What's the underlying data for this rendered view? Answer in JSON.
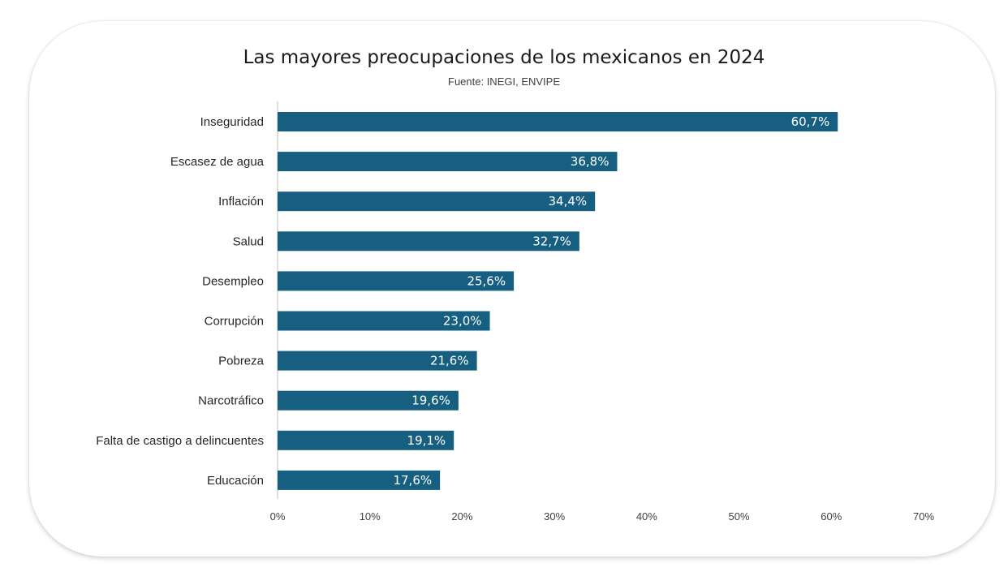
{
  "chart_data": {
    "type": "bar",
    "orientation": "horizontal",
    "title": "Las mayores preocupaciones de los mexicanos en 2024",
    "subtitle": "Fuente: INEGI, ENVIPE",
    "categories": [
      "Inseguridad",
      "Escasez de agua",
      "Inflación",
      "Salud",
      "Desempleo",
      "Corrupción",
      "Pobreza",
      "Narcotráfico",
      "Falta de castigo a delincuentes",
      "Educación"
    ],
    "values": [
      60.7,
      36.8,
      34.4,
      32.7,
      25.6,
      23.0,
      21.6,
      19.6,
      19.1,
      17.6
    ],
    "data_labels": [
      "60,7%",
      "36,8%",
      "34,4%",
      "32,7%",
      "25,6%",
      "23,0%",
      "21,6%",
      "19,6%",
      "19,1%",
      "17,6%"
    ],
    "xlim": [
      0,
      70
    ],
    "x_ticks": [
      0,
      10,
      20,
      30,
      40,
      50,
      60,
      70
    ],
    "x_tick_labels": [
      "0%",
      "10%",
      "20%",
      "30%",
      "40%",
      "50%",
      "60%",
      "70%"
    ],
    "xlabel": "",
    "ylabel": "",
    "grid": false,
    "legend": "none",
    "bar_color": "#165f80",
    "label_color": "#ffffff"
  }
}
